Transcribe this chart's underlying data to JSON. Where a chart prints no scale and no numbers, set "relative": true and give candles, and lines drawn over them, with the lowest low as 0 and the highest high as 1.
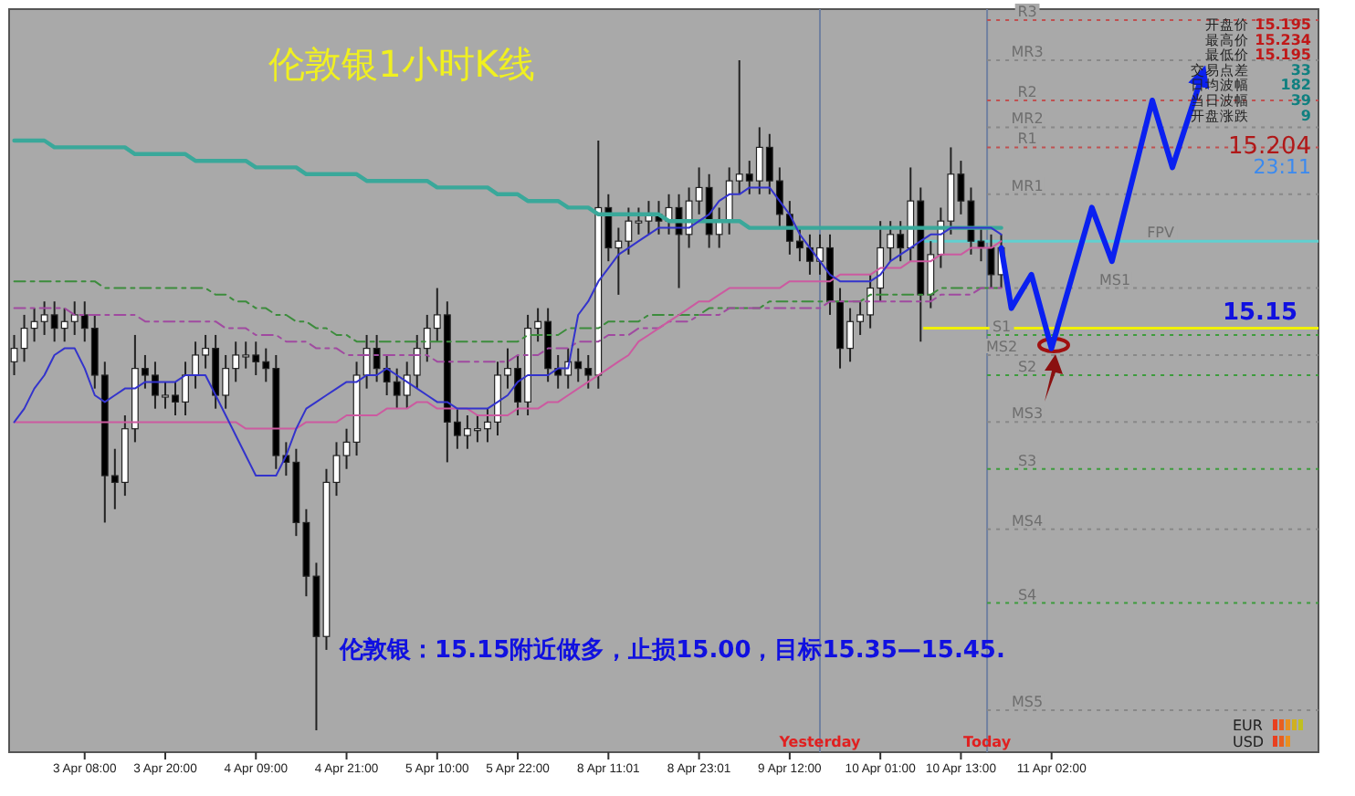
{
  "chart_data": {
    "type": "candlestick",
    "relative": true,
    "title": "伦敦银1小时K线",
    "categories": [
      null,
      null,
      null,
      null,
      null,
      null,
      null,
      "3 Apr 08:00",
      null,
      null,
      null,
      null,
      null,
      null,
      null,
      "3 Apr 20:00",
      null,
      null,
      null,
      null,
      null,
      null,
      null,
      null,
      "4 Apr 09:00",
      null,
      null,
      null,
      null,
      null,
      null,
      null,
      null,
      "4 Apr 21:00",
      null,
      null,
      null,
      null,
      null,
      null,
      null,
      null,
      "5 Apr 10:00",
      null,
      null,
      null,
      null,
      null,
      null,
      null,
      "5 Apr 22:00",
      null,
      null,
      null,
      null,
      null,
      null,
      null,
      null,
      "8 Apr 11:01",
      null,
      null,
      null,
      null,
      null,
      null,
      null,
      null,
      "8 Apr 23:01",
      null,
      null,
      null,
      null,
      null,
      null,
      null,
      null,
      "9 Apr 12:00",
      null,
      null,
      null,
      null,
      null,
      null,
      null,
      null,
      "10 Apr 01:00",
      null,
      null,
      null,
      null,
      null,
      null,
      null,
      "10 Apr 13:00",
      null,
      null,
      null,
      null,
      null,
      null,
      null,
      null,
      "11 Apr 02:00",
      null,
      null,
      null,
      null,
      null,
      null,
      null,
      null,
      null,
      null,
      null,
      null,
      null,
      null,
      null,
      null,
      null,
      null,
      null,
      null,
      null,
      null,
      null,
      null,
      null,
      null
    ],
    "ohlc": [
      [
        0.55,
        0.59,
        0.53,
        0.57
      ],
      [
        0.57,
        0.62,
        0.55,
        0.6
      ],
      [
        0.6,
        0.63,
        0.58,
        0.61
      ],
      [
        0.61,
        0.64,
        0.59,
        0.62
      ],
      [
        0.62,
        0.64,
        0.58,
        0.6
      ],
      [
        0.6,
        0.63,
        0.58,
        0.61
      ],
      [
        0.61,
        0.64,
        0.59,
        0.62
      ],
      [
        0.62,
        0.64,
        0.58,
        0.6
      ],
      [
        0.6,
        0.62,
        0.51,
        0.53
      ],
      [
        0.53,
        0.55,
        0.31,
        0.38
      ],
      [
        0.38,
        0.42,
        0.33,
        0.37
      ],
      [
        0.37,
        0.47,
        0.35,
        0.45
      ],
      [
        0.45,
        0.59,
        0.43,
        0.54
      ],
      [
        0.54,
        0.56,
        0.51,
        0.53
      ],
      [
        0.53,
        0.55,
        0.48,
        0.5
      ],
      [
        0.5,
        0.52,
        0.48,
        0.5
      ],
      [
        0.5,
        0.52,
        0.47,
        0.49
      ],
      [
        0.49,
        0.55,
        0.47,
        0.53
      ],
      [
        0.53,
        0.58,
        0.51,
        0.56
      ],
      [
        0.56,
        0.59,
        0.54,
        0.57
      ],
      [
        0.57,
        0.59,
        0.48,
        0.5
      ],
      [
        0.5,
        0.56,
        0.48,
        0.54
      ],
      [
        0.54,
        0.58,
        0.52,
        0.56
      ],
      [
        0.56,
        0.58,
        0.54,
        0.56
      ],
      [
        0.56,
        0.58,
        0.53,
        0.55
      ],
      [
        0.55,
        0.57,
        0.52,
        0.54
      ],
      [
        0.54,
        0.56,
        0.39,
        0.41
      ],
      [
        0.41,
        0.43,
        0.38,
        0.4
      ],
      [
        0.4,
        0.42,
        0.29,
        0.31
      ],
      [
        0.31,
        0.33,
        0.2,
        0.23
      ],
      [
        0.23,
        0.25,
        0,
        0.14
      ],
      [
        0.14,
        0.39,
        0.12,
        0.37
      ],
      [
        0.37,
        0.43,
        0.35,
        0.41
      ],
      [
        0.41,
        0.45,
        0.39,
        0.43
      ],
      [
        0.43,
        0.55,
        0.41,
        0.53
      ],
      [
        0.53,
        0.59,
        0.51,
        0.57
      ],
      [
        0.57,
        0.59,
        0.52,
        0.54
      ],
      [
        0.54,
        0.56,
        0.5,
        0.52
      ],
      [
        0.52,
        0.54,
        0.48,
        0.5
      ],
      [
        0.5,
        0.55,
        0.48,
        0.53
      ],
      [
        0.53,
        0.59,
        0.51,
        0.57
      ],
      [
        0.57,
        0.62,
        0.55,
        0.6
      ],
      [
        0.6,
        0.66,
        0.58,
        0.62
      ],
      [
        0.62,
        0.64,
        0.4,
        0.46
      ],
      [
        0.46,
        0.48,
        0.42,
        0.44
      ],
      [
        0.44,
        0.47,
        0.42,
        0.45
      ],
      [
        0.45,
        0.47,
        0.43,
        0.45
      ],
      [
        0.45,
        0.48,
        0.43,
        0.46
      ],
      [
        0.46,
        0.55,
        0.44,
        0.53
      ],
      [
        0.53,
        0.57,
        0.51,
        0.54
      ],
      [
        0.54,
        0.56,
        0.47,
        0.49
      ],
      [
        0.49,
        0.62,
        0.47,
        0.6
      ],
      [
        0.6,
        0.63,
        0.58,
        0.61
      ],
      [
        0.61,
        0.63,
        0.52,
        0.54
      ],
      [
        0.54,
        0.56,
        0.51,
        0.53
      ],
      [
        0.53,
        0.57,
        0.51,
        0.55
      ],
      [
        0.55,
        0.57,
        0.52,
        0.54
      ],
      [
        0.54,
        0.56,
        0.51,
        0.53
      ],
      [
        0.53,
        0.88,
        0.51,
        0.78
      ],
      [
        0.78,
        0.8,
        0.7,
        0.72
      ],
      [
        0.72,
        0.75,
        0.65,
        0.73
      ],
      [
        0.73,
        0.78,
        0.71,
        0.76
      ],
      [
        0.76,
        0.78,
        0.74,
        0.76
      ],
      [
        0.76,
        0.79,
        0.74,
        0.77
      ],
      [
        0.77,
        0.79,
        0.74,
        0.76
      ],
      [
        0.76,
        0.8,
        0.74,
        0.78
      ],
      [
        0.78,
        0.8,
        0.66,
        0.74
      ],
      [
        0.74,
        0.81,
        0.72,
        0.79
      ],
      [
        0.79,
        0.84,
        0.77,
        0.81
      ],
      [
        0.81,
        0.83,
        0.72,
        0.74
      ],
      [
        0.74,
        0.78,
        0.72,
        0.76
      ],
      [
        0.76,
        0.84,
        0.74,
        0.82
      ],
      [
        0.82,
        1.0,
        0.8,
        0.83
      ],
      [
        0.83,
        0.85,
        0.8,
        0.82
      ],
      [
        0.82,
        0.9,
        0.8,
        0.87
      ],
      [
        0.87,
        0.89,
        0.8,
        0.82
      ],
      [
        0.82,
        0.84,
        0.75,
        0.77
      ],
      [
        0.77,
        0.79,
        0.71,
        0.73
      ],
      [
        0.73,
        0.75,
        0.7,
        0.72
      ],
      [
        0.72,
        0.74,
        0.68,
        0.7
      ],
      [
        0.7,
        0.74,
        0.68,
        0.72
      ],
      [
        0.72,
        0.74,
        0.62,
        0.64
      ],
      [
        0.64,
        0.66,
        0.54,
        0.57
      ],
      [
        0.57,
        0.63,
        0.55,
        0.61
      ],
      [
        0.61,
        0.64,
        0.59,
        0.62
      ],
      [
        0.62,
        0.68,
        0.6,
        0.66
      ],
      [
        0.66,
        0.76,
        0.64,
        0.72
      ],
      [
        0.72,
        0.76,
        0.7,
        0.74
      ],
      [
        0.74,
        0.76,
        0.7,
        0.72
      ],
      [
        0.72,
        0.84,
        0.7,
        0.79
      ],
      [
        0.79,
        0.81,
        0.58,
        0.65
      ],
      [
        0.65,
        0.73,
        0.63,
        0.71
      ],
      [
        0.71,
        0.78,
        0.69,
        0.76
      ],
      [
        0.76,
        0.87,
        0.74,
        0.83
      ],
      [
        0.83,
        0.85,
        0.77,
        0.79
      ],
      [
        0.79,
        0.81,
        0.71,
        0.73
      ],
      [
        0.73,
        0.75,
        0.7,
        0.72
      ],
      [
        0.72,
        0.74,
        0.66,
        0.68
      ],
      [
        0.68,
        0.74,
        0.66,
        0.72
      ],
      null,
      null,
      null,
      null,
      null,
      null,
      null,
      null,
      null,
      null,
      null,
      null,
      null,
      null,
      null,
      null,
      null,
      null,
      null,
      null,
      null,
      null,
      null,
      null,
      null,
      null,
      null,
      null,
      null,
      null,
      null
    ],
    "series": [
      {
        "type": "line",
        "color": "#3aa89a",
        "values": [
          0.88,
          0.88,
          0.88,
          0.88,
          0.87,
          0.87,
          0.87,
          0.87,
          0.87,
          0.87,
          0.87,
          0.87,
          0.86,
          0.86,
          0.86,
          0.86,
          0.86,
          0.86,
          0.85,
          0.85,
          0.85,
          0.85,
          0.85,
          0.85,
          0.84,
          0.84,
          0.84,
          0.84,
          0.84,
          0.83,
          0.83,
          0.83,
          0.83,
          0.83,
          0.83,
          0.82,
          0.82,
          0.82,
          0.82,
          0.82,
          0.82,
          0.82,
          0.81,
          0.81,
          0.81,
          0.81,
          0.81,
          0.81,
          0.8,
          0.8,
          0.8,
          0.79,
          0.79,
          0.79,
          0.79,
          0.78,
          0.78,
          0.78,
          0.77,
          0.77,
          0.77,
          0.77,
          0.77,
          0.77,
          0.77,
          0.76,
          0.76,
          0.76,
          0.76,
          0.76,
          0.76,
          0.76,
          0.76,
          0.75,
          0.75,
          0.75,
          0.75,
          0.75,
          0.75,
          0.75,
          0.75,
          0.75,
          0.75,
          0.75,
          0.75,
          0.75,
          0.75,
          0.75,
          0.75,
          0.75,
          0.75,
          0.75,
          0.75,
          0.75,
          0.75,
          0.75,
          0.75,
          0.75,
          0.75,
          null,
          null,
          null,
          null,
          null,
          null,
          null,
          null,
          null,
          null,
          null,
          null,
          null,
          null,
          null,
          null,
          null,
          null,
          null,
          null,
          null,
          null,
          null,
          null,
          null,
          null,
          null,
          null,
          null,
          null,
          null
        ]
      },
      {
        "type": "line",
        "color": "#3c8c3c",
        "line_style": "dashed",
        "values": [
          0.67,
          0.67,
          0.67,
          0.67,
          0.67,
          0.67,
          0.67,
          0.67,
          0.67,
          0.66,
          0.66,
          0.66,
          0.66,
          0.66,
          0.66,
          0.66,
          0.66,
          0.66,
          0.66,
          0.66,
          0.65,
          0.65,
          0.64,
          0.64,
          0.63,
          0.63,
          0.62,
          0.62,
          0.61,
          0.61,
          0.6,
          0.6,
          0.59,
          0.59,
          0.58,
          0.58,
          0.58,
          0.58,
          0.58,
          0.58,
          0.58,
          0.58,
          0.58,
          0.58,
          0.58,
          0.58,
          0.58,
          0.58,
          0.58,
          0.58,
          0.58,
          0.59,
          0.59,
          0.59,
          0.59,
          0.6,
          0.6,
          0.6,
          0.6,
          0.61,
          0.61,
          0.61,
          0.61,
          0.62,
          0.62,
          0.62,
          0.62,
          0.62,
          0.62,
          0.63,
          0.63,
          0.63,
          0.63,
          0.63,
          0.63,
          0.64,
          0.64,
          0.64,
          0.64,
          0.64,
          0.64,
          0.64,
          0.64,
          0.64,
          0.64,
          0.65,
          0.65,
          0.65,
          0.65,
          0.65,
          0.65,
          0.65,
          0.66,
          0.66,
          0.66,
          0.66,
          0.66,
          0.66,
          0.66,
          null,
          null,
          null,
          null,
          null,
          null,
          null,
          null,
          null,
          null,
          null,
          null,
          null,
          null,
          null,
          null,
          null,
          null,
          null,
          null,
          null,
          null,
          null,
          null,
          null,
          null,
          null,
          null,
          null,
          null,
          null
        ]
      },
      {
        "type": "line",
        "color": "#a04aa0",
        "line_style": "dashed",
        "values": [
          0.63,
          0.63,
          0.63,
          0.63,
          0.63,
          0.63,
          0.62,
          0.62,
          0.62,
          0.62,
          0.62,
          0.62,
          0.62,
          0.61,
          0.61,
          0.61,
          0.61,
          0.61,
          0.61,
          0.61,
          0.61,
          0.6,
          0.6,
          0.6,
          0.59,
          0.59,
          0.59,
          0.58,
          0.58,
          0.58,
          0.57,
          0.57,
          0.57,
          0.56,
          0.56,
          0.56,
          0.56,
          0.56,
          0.56,
          0.56,
          0.56,
          0.56,
          0.55,
          0.55,
          0.55,
          0.55,
          0.55,
          0.55,
          0.55,
          0.55,
          0.56,
          0.56,
          0.56,
          0.57,
          0.57,
          0.57,
          0.58,
          0.58,
          0.58,
          0.59,
          0.59,
          0.59,
          0.6,
          0.6,
          0.6,
          0.61,
          0.61,
          0.61,
          0.62,
          0.62,
          0.62,
          0.63,
          0.63,
          0.63,
          0.63,
          0.63,
          0.63,
          0.63,
          0.63,
          0.63,
          0.63,
          0.64,
          0.64,
          0.64,
          0.64,
          0.64,
          0.64,
          0.64,
          0.64,
          0.64,
          0.64,
          0.64,
          0.65,
          0.65,
          0.65,
          0.65,
          0.66,
          0.66,
          0.66,
          null,
          null,
          null,
          null,
          null,
          null,
          null,
          null,
          null,
          null,
          null,
          null,
          null,
          null,
          null,
          null,
          null,
          null,
          null,
          null,
          null,
          null,
          null,
          null,
          null,
          null,
          null,
          null,
          null,
          null,
          null
        ]
      },
      {
        "type": "line",
        "color": "#cc5aa0",
        "values": [
          0.46,
          0.46,
          0.46,
          0.46,
          0.46,
          0.46,
          0.46,
          0.46,
          0.46,
          0.46,
          0.46,
          0.46,
          0.46,
          0.46,
          0.46,
          0.46,
          0.46,
          0.46,
          0.46,
          0.46,
          0.46,
          0.46,
          0.46,
          0.45,
          0.45,
          0.45,
          0.45,
          0.45,
          0.45,
          0.46,
          0.46,
          0.46,
          0.46,
          0.47,
          0.47,
          0.47,
          0.47,
          0.48,
          0.48,
          0.48,
          0.49,
          0.49,
          0.48,
          0.48,
          0.48,
          0.48,
          0.47,
          0.47,
          0.47,
          0.47,
          0.48,
          0.48,
          0.48,
          0.49,
          0.49,
          0.5,
          0.51,
          0.52,
          0.53,
          0.54,
          0.55,
          0.56,
          0.58,
          0.59,
          0.6,
          0.61,
          0.62,
          0.63,
          0.64,
          0.64,
          0.65,
          0.66,
          0.66,
          0.66,
          0.66,
          0.66,
          0.66,
          0.67,
          0.67,
          0.67,
          0.67,
          0.67,
          0.68,
          0.68,
          0.68,
          0.68,
          0.69,
          0.69,
          0.69,
          0.7,
          0.7,
          0.7,
          0.71,
          0.71,
          0.71,
          0.72,
          0.72,
          0.72,
          0.73,
          null,
          null,
          null,
          null,
          null,
          null,
          null,
          null,
          null,
          null,
          null,
          null,
          null,
          null,
          null,
          null,
          null,
          null,
          null,
          null,
          null,
          null,
          null,
          null,
          null,
          null,
          null,
          null,
          null,
          null,
          null
        ]
      },
      {
        "type": "line",
        "color": "#3333cc",
        "values": [
          0.46,
          0.48,
          0.51,
          0.53,
          0.56,
          0.57,
          0.57,
          0.54,
          0.5,
          0.49,
          0.5,
          0.51,
          0.51,
          0.52,
          0.52,
          0.52,
          0.52,
          0.53,
          0.53,
          0.53,
          0.5,
          0.47,
          0.44,
          0.41,
          0.38,
          0.38,
          0.38,
          0.41,
          0.45,
          0.48,
          0.49,
          0.5,
          0.51,
          0.52,
          0.52,
          0.53,
          0.53,
          0.54,
          0.53,
          0.52,
          0.51,
          0.5,
          0.49,
          0.49,
          0.48,
          0.48,
          0.48,
          0.48,
          0.49,
          0.5,
          0.52,
          0.53,
          0.53,
          0.53,
          0.54,
          0.54,
          0.62,
          0.64,
          0.67,
          0.69,
          0.71,
          0.72,
          0.73,
          0.74,
          0.75,
          0.75,
          0.75,
          0.75,
          0.76,
          0.77,
          0.79,
          0.8,
          0.8,
          0.81,
          0.81,
          0.81,
          0.79,
          0.77,
          0.74,
          0.72,
          0.7,
          0.68,
          0.67,
          0.67,
          0.67,
          0.67,
          0.68,
          0.7,
          0.71,
          0.72,
          0.73,
          0.74,
          0.74,
          0.75,
          0.75,
          0.75,
          0.75,
          0.75,
          0.74,
          null,
          null,
          null,
          null,
          null,
          null,
          null,
          null,
          null,
          null,
          null,
          null,
          null,
          null,
          null,
          null,
          null,
          null,
          null,
          null,
          null,
          null,
          null,
          null,
          null,
          null,
          null,
          null,
          null,
          null,
          null
        ]
      },
      {
        "type": "line",
        "color": "#0a20f0",
        "values": [
          null,
          null,
          null,
          null,
          null,
          null,
          null,
          null,
          null,
          null,
          null,
          null,
          null,
          null,
          null,
          null,
          null,
          null,
          null,
          null,
          null,
          null,
          null,
          null,
          null,
          null,
          null,
          null,
          null,
          null,
          null,
          null,
          null,
          null,
          null,
          null,
          null,
          null,
          null,
          null,
          null,
          null,
          null,
          null,
          null,
          null,
          null,
          null,
          null,
          null,
          null,
          null,
          null,
          null,
          null,
          null,
          null,
          null,
          null,
          null,
          null,
          null,
          null,
          null,
          null,
          null,
          null,
          null,
          null,
          null,
          null,
          null,
          null,
          null,
          null,
          null,
          null,
          null,
          null,
          null,
          null,
          null,
          null,
          null,
          null,
          null,
          null,
          null,
          null,
          null,
          null,
          null,
          null,
          null,
          null,
          null,
          null,
          null,
          0.72,
          0.63,
          null,
          0.68,
          null,
          0.57,
          null,
          null,
          null,
          0.78,
          null,
          0.7,
          null,
          null,
          null,
          0.94,
          null,
          0.84,
          null,
          null,
          0.98,
          null,
          null,
          null,
          null,
          null,
          null,
          null,
          null,
          null,
          null,
          null
        ]
      }
    ],
    "tick_labels": "x",
    "ref_lines": [
      {
        "axis": "y",
        "value": 1.06,
        "label": "R3",
        "color": "#c05050",
        "line_style": "dotted"
      },
      {
        "axis": "y",
        "value": 1.0,
        "label": "MR3",
        "color": "#888888",
        "line_style": "dotted"
      },
      {
        "axis": "y",
        "value": 0.94,
        "label": "R2",
        "color": "#c05050",
        "line_style": "dotted"
      },
      {
        "axis": "y",
        "value": 0.9,
        "label": "MR2",
        "color": "#888888",
        "line_style": "dotted"
      },
      {
        "axis": "y",
        "value": 0.87,
        "label": "R1",
        "color": "#c05050",
        "line_style": "dotted"
      },
      {
        "axis": "y",
        "value": 0.8,
        "label": "MR1",
        "color": "#888888",
        "line_style": "dotted"
      },
      {
        "axis": "y",
        "value": 0.73,
        "label": "FPV",
        "color": "#60d0d0",
        "line_style": "solid"
      },
      {
        "axis": "y",
        "value": 0.66,
        "label": "MS1",
        "color": "#888888",
        "line_style": "dotted"
      },
      {
        "axis": "y",
        "value": 0.6,
        "color": "#f0f000",
        "line_style": "solid"
      },
      {
        "axis": "y",
        "value": 0.59,
        "label": "S1",
        "color": "#3c9c3c",
        "line_style": "dotted"
      },
      {
        "axis": "y",
        "value": 0.56,
        "label": "MS2",
        "color": "#888888",
        "line_style": "dotted"
      },
      {
        "axis": "y",
        "value": 0.53,
        "label": "S2",
        "color": "#3c9c3c",
        "line_style": "dotted"
      },
      {
        "axis": "y",
        "value": 0.46,
        "label": "MS3",
        "color": "#888888",
        "line_style": "dotted"
      },
      {
        "axis": "y",
        "value": 0.39,
        "label": "S3",
        "color": "#3c9c3c",
        "line_style": "dotted"
      },
      {
        "axis": "y",
        "value": 0.3,
        "label": "MS4",
        "color": "#888888",
        "line_style": "dotted"
      },
      {
        "axis": "y",
        "value": 0.19,
        "label": "S4",
        "color": "#3c9c3c",
        "line_style": "dotted"
      },
      {
        "axis": "y",
        "value": 0.03,
        "label": "MS5",
        "color": "#888888",
        "line_style": "dotted"
      }
    ],
    "annotations": [
      "伦敦银：15.15附近做多，止损15.00，目标15.35—15.45.",
      "开盘价",
      "15.195",
      "最高价",
      "15.234",
      "最低价",
      "15.195",
      "交易点差",
      "33",
      "日均波幅",
      "182",
      "当日波幅",
      "39",
      "开盘涨跌",
      "9",
      "15.204",
      "23:11",
      "EUR",
      "USD",
      "15.15",
      "Yesterday",
      "Today"
    ]
  }
}
